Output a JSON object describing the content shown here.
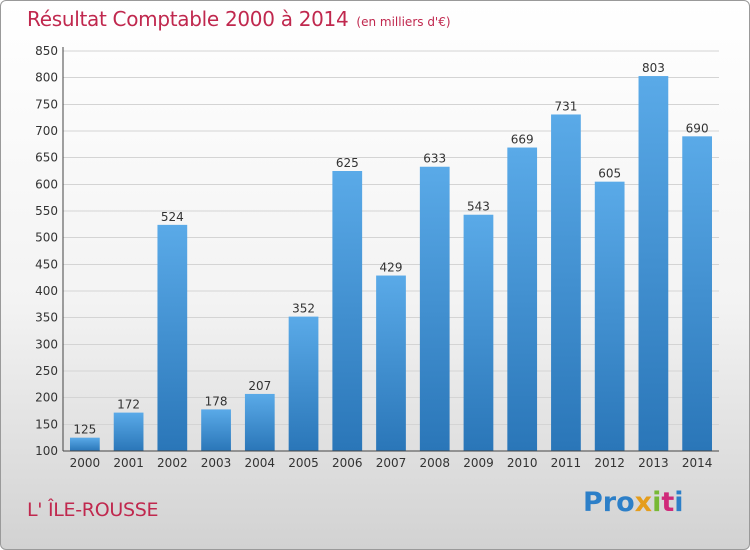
{
  "chart_data": {
    "type": "bar",
    "title": "Résultat Comptable 2000 à 2014",
    "subtitle": "(en milliers d'€)",
    "categories": [
      "2000",
      "2001",
      "2002",
      "2003",
      "2004",
      "2005",
      "2006",
      "2007",
      "2008",
      "2009",
      "2010",
      "2011",
      "2012",
      "2013",
      "2014"
    ],
    "values": [
      125,
      172,
      524,
      178,
      207,
      352,
      625,
      429,
      633,
      543,
      669,
      731,
      605,
      803,
      690
    ],
    "ylim": [
      100,
      850
    ],
    "yticks": [
      100,
      150,
      200,
      250,
      300,
      350,
      400,
      450,
      500,
      550,
      600,
      650,
      700,
      750,
      800,
      850
    ],
    "grid": true,
    "bar_color_top": "#5aaae8",
    "bar_color_bottom": "#2a76b8"
  },
  "commune": "L' ÎLE-ROUSSE",
  "logo": {
    "parts": [
      "Pro",
      "x",
      "i",
      "t",
      "i"
    ]
  }
}
